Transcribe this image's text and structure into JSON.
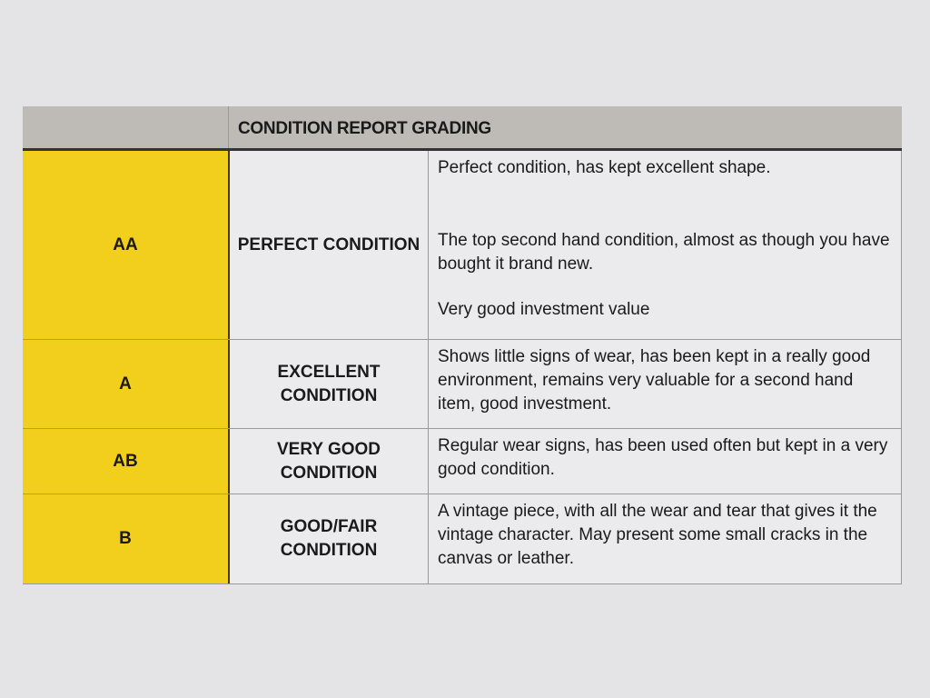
{
  "header": {
    "title": "CONDITION REPORT GRADING"
  },
  "rows": [
    {
      "grade": "AA",
      "condition": "PERFECT CONDITION",
      "description": [
        "Perfect condition, has kept excellent shape.",
        "The top second hand condition, almost as though you have bought it brand new.",
        "Very good investment value"
      ]
    },
    {
      "grade": "A",
      "condition": "EXCELLENT CONDITION",
      "description": [
        "Shows little signs of wear, has been kept in a really good environment, remains very valuable for a second hand item, good investment."
      ]
    },
    {
      "grade": "AB",
      "condition": "VERY GOOD CONDITION",
      "description": [
        "Regular wear signs, has been used often but kept in a very good condition."
      ]
    },
    {
      "grade": "B",
      "condition": "GOOD/FAIR CONDITION",
      "description": [
        "A vintage piece, with all the wear and tear that gives it the vintage character. May present some small cracks in the canvas or leather."
      ]
    }
  ],
  "colors": {
    "grade_fill": "#f1cf1c",
    "header_fill": "#bebbb7"
  }
}
